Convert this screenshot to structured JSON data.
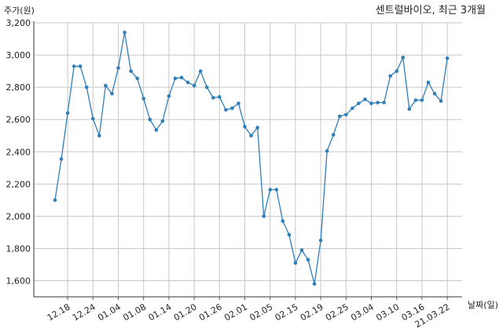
{
  "chart_data": {
    "type": "line",
    "title": "센트럴바이오, 최근 3개월",
    "ylabel": "주가(원)",
    "xlabel": "날짜(일)",
    "ylim": [
      1500,
      3200
    ],
    "yticks": [
      1600,
      1800,
      2000,
      2200,
      2400,
      2600,
      2800,
      3000,
      3200
    ],
    "ytick_labels": [
      "1,600",
      "1,800",
      "2,000",
      "2,200",
      "2,400",
      "2,600",
      "2,800",
      "3,000",
      "3,200"
    ],
    "xtick_labels": [
      "12.18",
      "12.24",
      "01.04",
      "01.08",
      "01.14",
      "01.20",
      "01.26",
      "02.01",
      "02.05",
      "02.15",
      "02.19",
      "02.25",
      "03.04",
      "03.10",
      "03.16",
      "21.03.22"
    ],
    "grid": true,
    "line_color": "#2f7fb8",
    "series": [
      {
        "values": [
          2100,
          2355,
          2640,
          2930,
          2930,
          2800,
          2605,
          2500,
          2810,
          2760,
          2920,
          3140,
          2900,
          2855,
          2730,
          2600,
          2535,
          2590,
          2745,
          2855,
          2860,
          2830,
          2810,
          2900,
          2800,
          2735,
          2740,
          2660,
          2670,
          2700,
          2555,
          2500,
          2550,
          2000,
          2165,
          2165,
          1970,
          1885,
          1710,
          1790,
          1730,
          1580,
          1850,
          2405,
          2505,
          2620,
          2630,
          2670,
          2700,
          2725,
          2700,
          2705,
          2705,
          2870,
          2900,
          2985,
          2665,
          2720,
          2720,
          2830,
          2760,
          2715,
          2980
        ]
      }
    ]
  }
}
